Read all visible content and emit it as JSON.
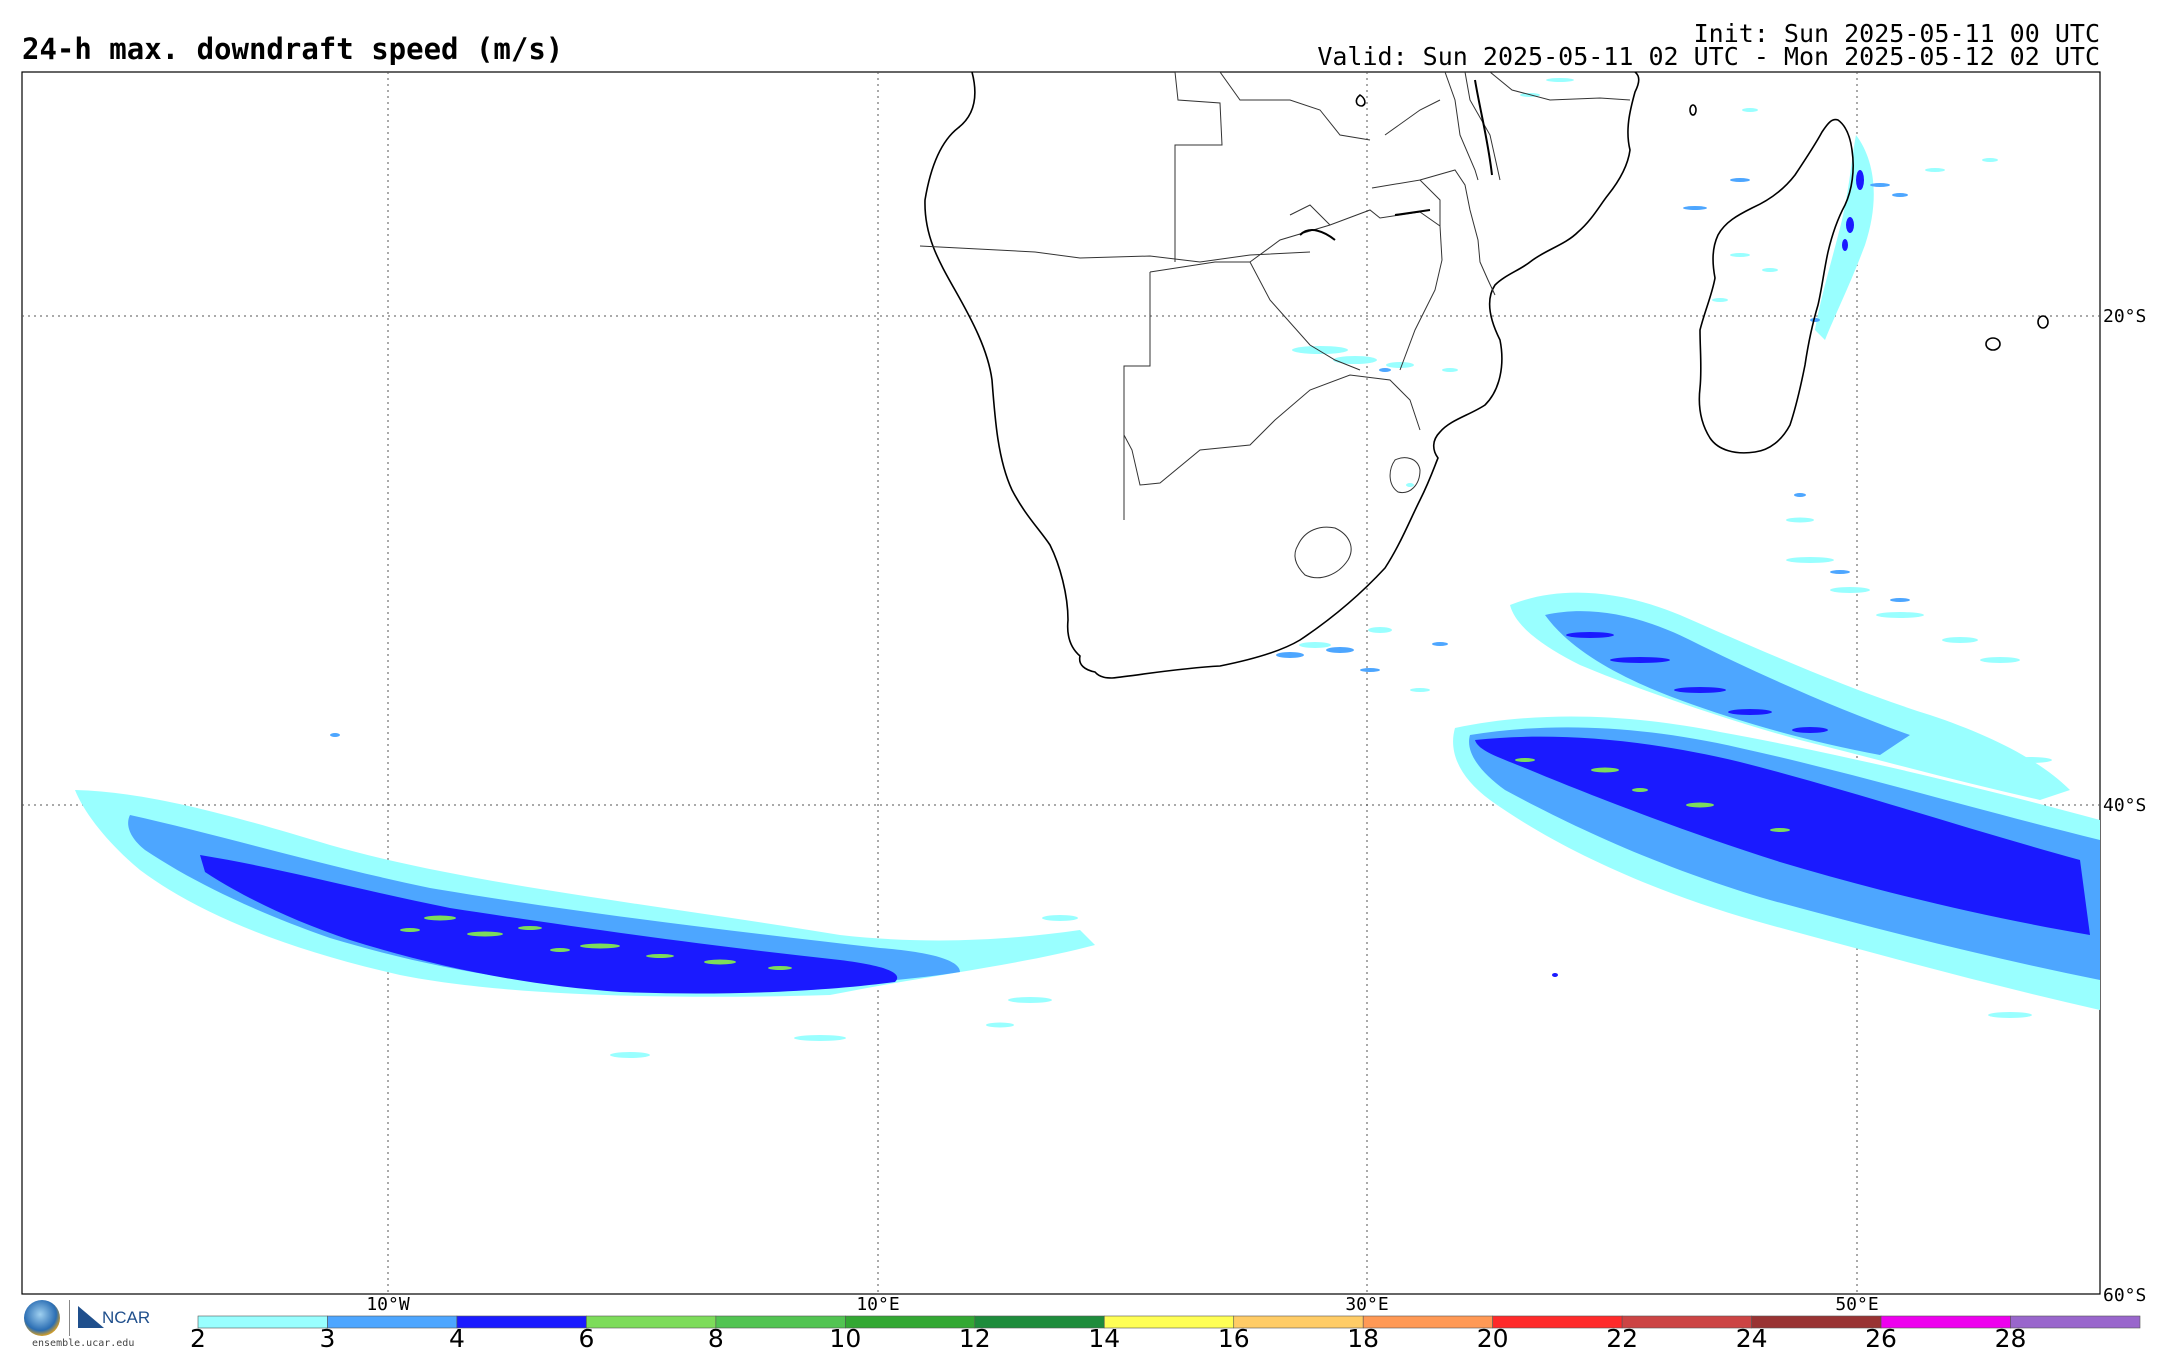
{
  "header": {
    "title": "24-h max. downdraft speed (m/s)",
    "init": "Init: Sun 2025-05-11 00 UTC",
    "valid": "Valid: Sun 2025-05-11 02 UTC - Mon 2025-05-12 02 UTC"
  },
  "map": {
    "projection": "cylindrical equidistant",
    "lon_range": [
      -25,
      60
    ],
    "lat_range": [
      -60,
      -10
    ],
    "lon_gridlines": [
      -10,
      10,
      30,
      50
    ],
    "lat_gridlines": [
      -20,
      -40,
      -60
    ],
    "lon_labels": [
      "10°W",
      "10°E",
      "30°E",
      "50°E"
    ],
    "lat_labels": [
      "20°S",
      "40°S",
      "60°S"
    ],
    "gridline_style": "dotted"
  },
  "colorbar": {
    "ticks": [
      "2",
      "3",
      "4",
      "6",
      "8",
      "10",
      "12",
      "14",
      "16",
      "18",
      "20",
      "22",
      "24",
      "26",
      "28"
    ],
    "colors": [
      "#99ffff",
      "#4da6ff",
      "#1a1aff",
      "#7ddc5a",
      "#52c452",
      "#33a833",
      "#1e8c3c",
      "#ffff55",
      "#ffcc66",
      "#ff9955",
      "#ff2a2a",
      "#cc4444",
      "#993333",
      "#ee00ee",
      "#9966cc"
    ]
  },
  "logos": {
    "left": "NSF",
    "right": "NCAR",
    "url": "ensemble.ucar.edu"
  },
  "features": [
    {
      "name": "downdraft-band-south-atlantic",
      "levels": [
        2,
        3,
        4,
        6
      ]
    },
    {
      "name": "downdraft-band-south-indian-ocean",
      "levels": [
        2,
        3,
        4,
        6
      ]
    },
    {
      "name": "downdraft-speckle-madagascar-east-coast",
      "levels": [
        2,
        3,
        4
      ]
    },
    {
      "name": "downdraft-speckle-south-africa-coast",
      "levels": [
        2,
        3,
        4
      ]
    }
  ]
}
